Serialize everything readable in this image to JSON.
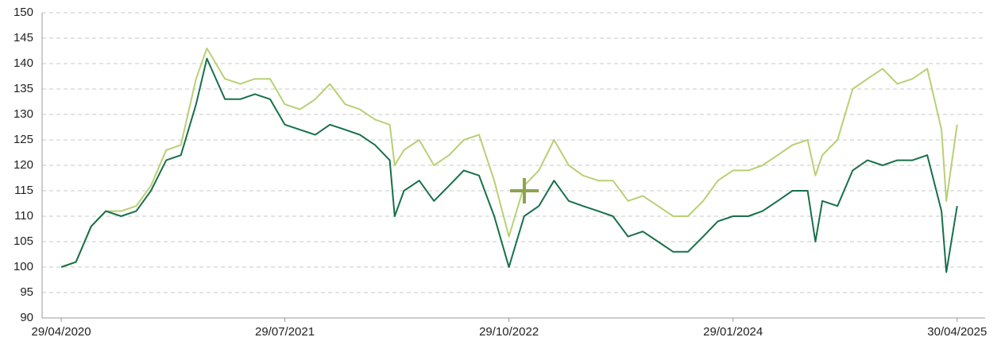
{
  "chart_data": {
    "type": "line",
    "x": [
      "2020-04-29",
      "2020-05-29",
      "2020-06-29",
      "2020-07-29",
      "2020-08-29",
      "2020-09-29",
      "2020-10-29",
      "2020-11-29",
      "2020-12-29",
      "2021-01-29",
      "2021-02-20",
      "2021-03-29",
      "2021-04-29",
      "2021-05-29",
      "2021-06-29",
      "2021-07-29",
      "2021-08-29",
      "2021-09-29",
      "2021-10-29",
      "2021-11-29",
      "2021-12-29",
      "2022-01-29",
      "2022-02-28",
      "2022-03-10",
      "2022-03-29",
      "2022-04-29",
      "2022-05-29",
      "2022-06-29",
      "2022-07-29",
      "2022-08-29",
      "2022-09-29",
      "2022-10-29",
      "2022-11-29",
      "2022-12-29",
      "2023-01-29",
      "2023-02-28",
      "2023-03-29",
      "2023-04-29",
      "2023-05-29",
      "2023-06-29",
      "2023-07-29",
      "2023-08-29",
      "2023-09-29",
      "2023-10-29",
      "2023-11-29",
      "2023-12-29",
      "2024-01-29",
      "2024-02-29",
      "2024-03-29",
      "2024-04-29",
      "2024-05-29",
      "2024-06-29",
      "2024-07-15",
      "2024-07-29",
      "2024-08-29",
      "2024-09-29",
      "2024-10-29",
      "2024-11-29",
      "2024-12-29",
      "2025-01-29",
      "2025-02-28",
      "2025-03-29",
      "2025-04-08",
      "2025-04-30"
    ],
    "series": [
      {
        "color": "#b8d074",
        "values": [
          100,
          101,
          108,
          111,
          111,
          112,
          116,
          123,
          124,
          137,
          143,
          137,
          136,
          137,
          137,
          132,
          131,
          133,
          136,
          132,
          131,
          129,
          128,
          120,
          123,
          125,
          120,
          122,
          125,
          126,
          117,
          106,
          116,
          119,
          125,
          120,
          118,
          117,
          117,
          113,
          114,
          112,
          110,
          110,
          113,
          117,
          119,
          119,
          120,
          122,
          124,
          125,
          118,
          122,
          125,
          135,
          137,
          139,
          136,
          137,
          139,
          127,
          113,
          128
        ]
      },
      {
        "color": "#17704a",
        "values": [
          100,
          101,
          108,
          111,
          110,
          111,
          115,
          121,
          122,
          132,
          141,
          133,
          133,
          134,
          133,
          128,
          127,
          126,
          128,
          127,
          126,
          124,
          121,
          110,
          115,
          117,
          113,
          116,
          119,
          118,
          110,
          100,
          110,
          112,
          117,
          113,
          112,
          111,
          110,
          106,
          107,
          105,
          103,
          103,
          106,
          109,
          110,
          110,
          111,
          113,
          115,
          115,
          105,
          113,
          112,
          119,
          121,
          120,
          121,
          121,
          122,
          111,
          99,
          112
        ]
      }
    ],
    "xlim": [
      "2020-03-21",
      "2025-06-26"
    ],
    "xticks": [
      {
        "value": "2020-04-29",
        "label": "29/04/2020"
      },
      {
        "value": "2021-07-29",
        "label": "29/07/2021"
      },
      {
        "value": "2022-10-29",
        "label": "29/10/2022"
      },
      {
        "value": "2024-01-29",
        "label": "29/01/2024"
      },
      {
        "value": "2025-04-30",
        "label": "30/04/2025"
      }
    ],
    "ylim": [
      90,
      150
    ],
    "yticks": [
      90,
      95,
      100,
      105,
      110,
      115,
      120,
      125,
      130,
      135,
      140,
      145,
      150
    ],
    "grid": true
  }
}
